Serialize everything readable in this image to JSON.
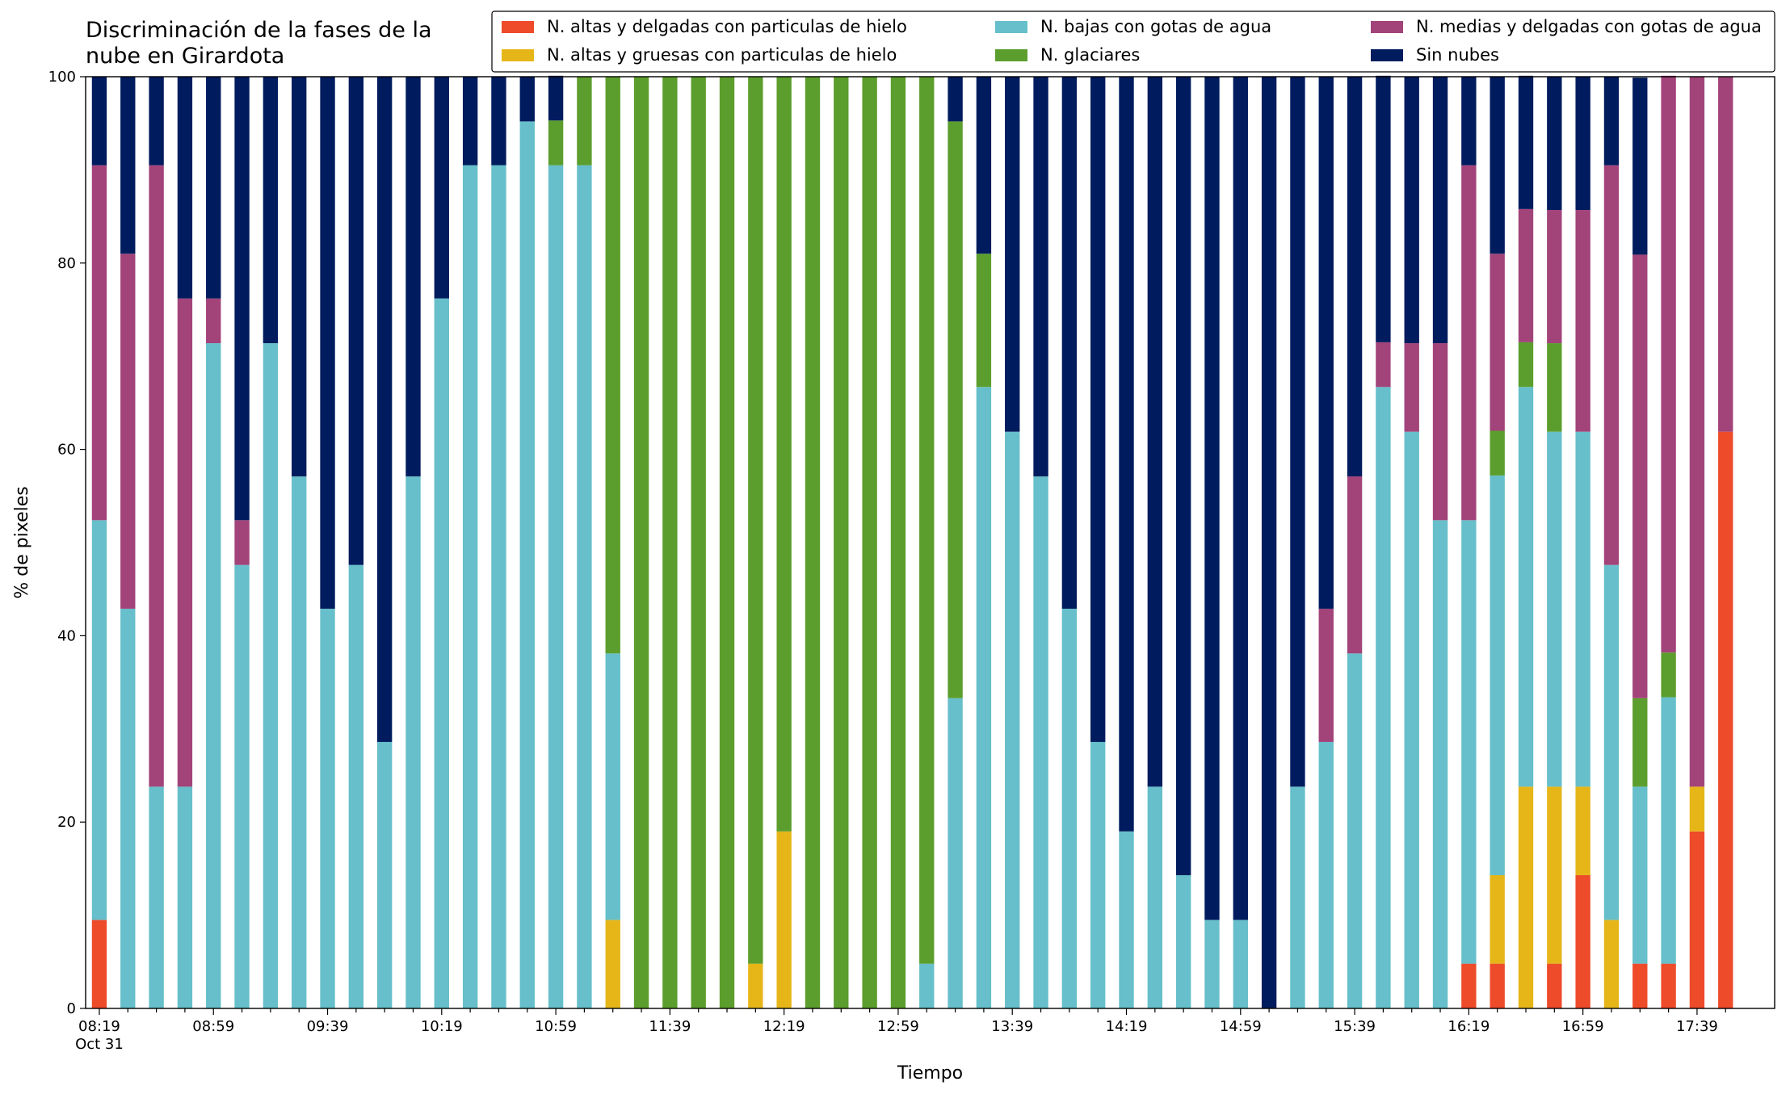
{
  "chart_data": {
    "type": "stacked_bar",
    "title": "Discriminación de la fases de la nube en Girardota",
    "x_label": "Tiempo",
    "y_label": "% de pixeles",
    "date_label": "Oct 31",
    "categories": [
      "08:19",
      null,
      null,
      null,
      "08:59",
      null,
      null,
      null,
      "09:39",
      null,
      null,
      null,
      "10:19",
      null,
      null,
      null,
      "10:59",
      null,
      null,
      null,
      "11:39",
      null,
      null,
      null,
      "12:19",
      null,
      null,
      null,
      "12:59",
      null,
      null,
      null,
      "13:39",
      null,
      null,
      null,
      "14:19",
      null,
      null,
      null,
      "14:59",
      null,
      null,
      null,
      "15:39",
      null,
      null,
      null,
      "16:19",
      null,
      null,
      null,
      "16:59",
      null,
      null,
      null,
      "17:39",
      null
    ],
    "ylim": [
      0,
      100
    ],
    "yticks": [
      0,
      20,
      40,
      60,
      80,
      100
    ],
    "grid": false,
    "legend": "top",
    "series": [
      {
        "name": "N. altas y delgadas con particulas de hielo",
        "color": "#ee4b2b",
        "values": [
          9.5,
          0,
          0,
          0,
          0,
          0,
          0,
          0,
          0,
          0,
          0,
          0,
          0,
          0,
          0,
          0,
          0,
          0,
          0,
          0,
          0,
          0,
          0,
          0,
          0,
          0,
          0,
          0,
          0,
          0,
          0,
          0,
          0,
          0,
          0,
          0,
          0,
          0,
          0,
          0,
          0,
          0,
          0,
          0,
          0,
          0,
          0,
          0,
          4.8,
          4.8,
          0,
          4.8,
          14.3,
          0,
          4.8,
          4.8,
          19.0,
          61.9
        ]
      },
      {
        "name": "N. altas y gruesas con particulas de hielo",
        "color": "#e6b619",
        "values": [
          0,
          0,
          0,
          0,
          0,
          0,
          0,
          0,
          0,
          0,
          0,
          0,
          0,
          0,
          0,
          0,
          0,
          0,
          9.5,
          0,
          0,
          0,
          0,
          4.8,
          19.0,
          0,
          0,
          0,
          0,
          0,
          0,
          0,
          0,
          0,
          0,
          0,
          0,
          0,
          0,
          0,
          0,
          0,
          0,
          0,
          0,
          0,
          0,
          0,
          0,
          9.5,
          23.8,
          19.0,
          9.5,
          9.5,
          0,
          0,
          4.8,
          0
        ]
      },
      {
        "name": "N. bajas con gotas de agua",
        "color": "#66bfca",
        "values": [
          42.9,
          42.9,
          23.8,
          23.8,
          71.4,
          47.6,
          71.4,
          57.1,
          42.9,
          47.6,
          28.6,
          57.1,
          76.2,
          90.5,
          90.5,
          95.2,
          90.5,
          90.5,
          28.6,
          0,
          0,
          0,
          0,
          0,
          0,
          0,
          0,
          0,
          0,
          4.8,
          33.3,
          66.7,
          61.9,
          57.1,
          42.9,
          28.6,
          19.0,
          23.8,
          14.3,
          9.5,
          9.5,
          0,
          23.8,
          28.6,
          38.1,
          66.7,
          61.9,
          52.4,
          47.6,
          42.9,
          42.9,
          38.1,
          38.1,
          38.1,
          19.0,
          28.6,
          0,
          0
        ]
      },
      {
        "name": "N. glaciares",
        "color": "#5c9e2d",
        "values": [
          0,
          0,
          0,
          0,
          0,
          0,
          0,
          0,
          0,
          0,
          0,
          0,
          0,
          0,
          0,
          0,
          4.8,
          9.5,
          61.9,
          100,
          100,
          100,
          100,
          95.2,
          81.0,
          100,
          100,
          100,
          100,
          95.2,
          61.9,
          14.3,
          0,
          0,
          0,
          0,
          0,
          0,
          0,
          0,
          0,
          0,
          0,
          0,
          0,
          0,
          0,
          0,
          0,
          4.8,
          4.8,
          9.5,
          0,
          0,
          9.5,
          4.8,
          0,
          0
        ]
      },
      {
        "name": "N. medias y delgadas con gotas de agua",
        "color": "#a2437a",
        "values": [
          38.1,
          38.1,
          66.7,
          52.4,
          4.8,
          4.8,
          0,
          0,
          0,
          0,
          0,
          0,
          0,
          0,
          0,
          0,
          0,
          0,
          0,
          0,
          0,
          0,
          0,
          0,
          0,
          0,
          0,
          0,
          0,
          0,
          0,
          0,
          0,
          0,
          0,
          0,
          0,
          0,
          0,
          0,
          0,
          0,
          0,
          14.3,
          19.0,
          4.8,
          9.5,
          19.0,
          38.1,
          19.0,
          14.3,
          14.3,
          23.8,
          42.9,
          47.6,
          61.9,
          76.2,
          38.1
        ]
      },
      {
        "name": "Sin nubes",
        "color": "#001c5e",
        "values": [
          9.5,
          19.0,
          9.5,
          23.8,
          23.8,
          47.6,
          28.6,
          42.9,
          57.1,
          52.4,
          71.4,
          42.9,
          23.8,
          9.5,
          9.5,
          4.8,
          4.8,
          0,
          0,
          0,
          0,
          0,
          0,
          0,
          0,
          0,
          0,
          0,
          0,
          0,
          4.8,
          19.0,
          38.1,
          42.9,
          57.1,
          71.4,
          81.0,
          76.2,
          85.7,
          90.5,
          90.5,
          100,
          76.2,
          57.1,
          42.9,
          28.6,
          28.6,
          28.6,
          9.5,
          19.0,
          14.3,
          14.3,
          14.3,
          9.5,
          19.0,
          0,
          0,
          0
        ]
      }
    ]
  }
}
